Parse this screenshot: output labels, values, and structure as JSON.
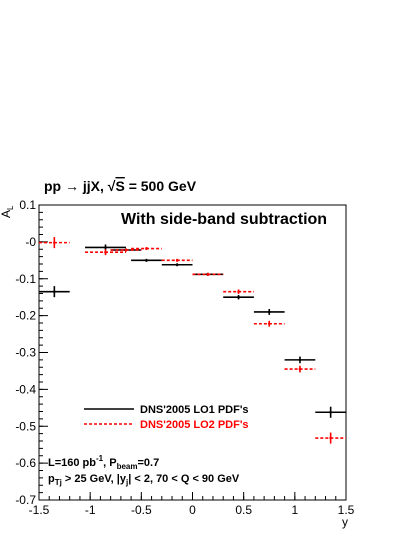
{
  "chart_data": {
    "type": "scatter",
    "process": {
      "main": "pp → jjX, ",
      "sqrt_symbol": "√",
      "sqrt_arg": "S",
      "tail": " = 500 GeV"
    },
    "panel_title": "With side-band subtraction",
    "ylabel": {
      "main": "A",
      "sub": "L"
    },
    "xlabel": "y",
    "xlim": [
      -1.5,
      1.5
    ],
    "ylim": [
      -0.7,
      0.1
    ],
    "x_ticks": [
      {
        "v": -1.5,
        "t": "-1.5"
      },
      {
        "v": -1.0,
        "t": "-1"
      },
      {
        "v": -0.5,
        "t": "-0.5"
      },
      {
        "v": 0.0,
        "t": "0"
      },
      {
        "v": 0.5,
        "t": "0.5"
      },
      {
        "v": 1.0,
        "t": "1"
      },
      {
        "v": 1.5,
        "t": "1.5"
      }
    ],
    "y_ticks": [
      {
        "v": 0.1,
        "t": "0.1"
      },
      {
        "v": 0.0,
        "t": "-0"
      },
      {
        "v": -0.1,
        "t": "-0.1"
      },
      {
        "v": -0.2,
        "t": "-0.2"
      },
      {
        "v": -0.3,
        "t": "-0.3"
      },
      {
        "v": -0.4,
        "t": "-0.4"
      },
      {
        "v": -0.5,
        "t": "-0.5"
      },
      {
        "v": -0.6,
        "t": "-0.6"
      },
      {
        "v": -0.7,
        "t": "-0.7"
      }
    ],
    "grid": false,
    "legend_placement": "lower-left",
    "series": [
      {
        "name": "DNS'2005 LO1 PDF's",
        "color": "#000000",
        "style": "solid",
        "points": [
          {
            "x": -1.35,
            "y": -0.135,
            "xerr": 0.15,
            "yerr": 0.015
          },
          {
            "x": -0.85,
            "y": -0.015,
            "xerr": 0.2,
            "yerr": 0.008
          },
          {
            "x": -0.65,
            "y": -0.022,
            "xerr": 0.15,
            "yerr": 0.004
          },
          {
            "x": -0.45,
            "y": -0.05,
            "xerr": 0.15,
            "yerr": 0.004
          },
          {
            "x": -0.15,
            "y": -0.062,
            "xerr": 0.15,
            "yerr": 0.004
          },
          {
            "x": 0.15,
            "y": -0.088,
            "xerr": 0.15,
            "yerr": 0.004
          },
          {
            "x": 0.45,
            "y": -0.15,
            "xerr": 0.15,
            "yerr": 0.006
          },
          {
            "x": 0.75,
            "y": -0.19,
            "xerr": 0.15,
            "yerr": 0.008
          },
          {
            "x": 1.05,
            "y": -0.32,
            "xerr": 0.15,
            "yerr": 0.009
          },
          {
            "x": 1.35,
            "y": -0.462,
            "xerr": 0.15,
            "yerr": 0.015
          }
        ]
      },
      {
        "name": "DNS'2005 LO2 PDF's",
        "color": "#ff0000",
        "style": "dashed",
        "points": [
          {
            "x": -1.35,
            "y": -0.002,
            "xerr": 0.15,
            "yerr": 0.015
          },
          {
            "x": -0.85,
            "y": -0.028,
            "xerr": 0.2,
            "yerr": 0.008
          },
          {
            "x": -0.65,
            "y": -0.022,
            "xerr": 0.15,
            "yerr": 0.004
          },
          {
            "x": -0.45,
            "y": -0.018,
            "xerr": 0.15,
            "yerr": 0.004
          },
          {
            "x": -0.15,
            "y": -0.05,
            "xerr": 0.15,
            "yerr": 0.004
          },
          {
            "x": 0.15,
            "y": -0.088,
            "xerr": 0.15,
            "yerr": 0.004
          },
          {
            "x": 0.45,
            "y": -0.135,
            "xerr": 0.15,
            "yerr": 0.006
          },
          {
            "x": 0.75,
            "y": -0.222,
            "xerr": 0.15,
            "yerr": 0.008
          },
          {
            "x": 1.05,
            "y": -0.345,
            "xerr": 0.15,
            "yerr": 0.009
          },
          {
            "x": 1.35,
            "y": -0.532,
            "xerr": 0.15,
            "yerr": 0.015
          }
        ]
      }
    ],
    "annotations": {
      "lumi": {
        "a": "L=160 pb",
        "a_sup": "-1",
        "b": ", P",
        "b_sub": "beam",
        "c": "=0.7"
      },
      "cuts": {
        "a": "p",
        "a_sub": "Tj",
        "b": " > 25 GeV, |y",
        "b_sub": "j",
        "c": "| < 2, 70 < Q < 90 GeV"
      }
    }
  }
}
